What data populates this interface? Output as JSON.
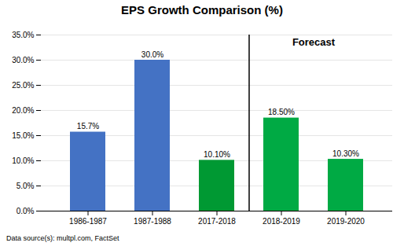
{
  "chart_data": {
    "type": "bar",
    "title": "EPS Growth Comparison (%)",
    "categories": [
      "1986-1987",
      "1987-1988",
      "2017-2018",
      "2018-2019",
      "2019-2020"
    ],
    "values": [
      15.7,
      30.0,
      10.1,
      18.5,
      10.3
    ],
    "value_labels": [
      "15.7%",
      "30.0%",
      "10.10%",
      "18.50%",
      "10.30%"
    ],
    "data_labels": true,
    "colors": [
      "#4472C4",
      "#4472C4",
      "#009933",
      "#00AA44",
      "#00AA44"
    ],
    "ylim": [
      0,
      35
    ],
    "yticks": [
      {
        "value": 0,
        "label": "0.0%"
      },
      {
        "value": 5,
        "label": "5.0%"
      },
      {
        "value": 10,
        "label": "10.0%"
      },
      {
        "value": 15,
        "label": "15.0%"
      },
      {
        "value": 20,
        "label": "20.0%"
      },
      {
        "value": 25,
        "label": "25.0%"
      },
      {
        "value": 30,
        "label": "30.0%"
      },
      {
        "value": 35,
        "label": "35.0%"
      }
    ],
    "grid": true,
    "annotations": [
      {
        "text": "Forecast",
        "categories": [
          "2018-2019",
          "2019-2020"
        ]
      }
    ],
    "caption": "Data source(s): multpl.com, FactSet"
  }
}
